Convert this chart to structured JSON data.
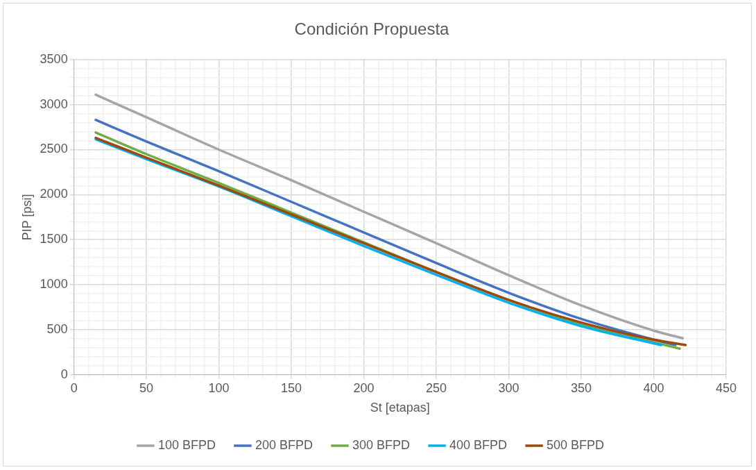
{
  "chart_data": {
    "type": "line",
    "title": "Condición Propuesta",
    "xlabel": "St [etapas]",
    "ylabel": "PIP [psi]",
    "xlim": [
      0,
      450
    ],
    "xticks": [
      0,
      {
        "value": 10,
        "label": null
      },
      {
        "value": 20,
        "label": null
      },
      {
        "value": 30,
        "label": null
      },
      {
        "value": 40,
        "label": null
      },
      50,
      {
        "value": 60,
        "label": null
      },
      {
        "value": 70,
        "label": null
      },
      {
        "value": 80,
        "label": null
      },
      {
        "value": 90,
        "label": null
      },
      100,
      {
        "value": 110,
        "label": null
      },
      {
        "value": 120,
        "label": null
      },
      {
        "value": 130,
        "label": null
      },
      {
        "value": 140,
        "label": null
      },
      150,
      {
        "value": 160,
        "label": null
      },
      {
        "value": 170,
        "label": null
      },
      {
        "value": 180,
        "label": null
      },
      {
        "value": 190,
        "label": null
      },
      200,
      {
        "value": 210,
        "label": null
      },
      {
        "value": 220,
        "label": null
      },
      {
        "value": 230,
        "label": null
      },
      {
        "value": 240,
        "label": null
      },
      250,
      {
        "value": 260,
        "label": null
      },
      {
        "value": 270,
        "label": null
      },
      {
        "value": 280,
        "label": null
      },
      {
        "value": 290,
        "label": null
      },
      300,
      {
        "value": 310,
        "label": null
      },
      {
        "value": 320,
        "label": null
      },
      {
        "value": 330,
        "label": null
      },
      {
        "value": 340,
        "label": null
      },
      350,
      {
        "value": 360,
        "label": null
      },
      {
        "value": 370,
        "label": null
      },
      {
        "value": 380,
        "label": null
      },
      {
        "value": 390,
        "label": null
      },
      400,
      {
        "value": 410,
        "label": null
      },
      {
        "value": 420,
        "label": null
      },
      {
        "value": 430,
        "label": null
      },
      {
        "value": 440,
        "label": null
      },
      450
    ],
    "ylim": [
      0,
      3500
    ],
    "yticks": [
      0,
      {
        "value": 100,
        "label": null
      },
      {
        "value": 200,
        "label": null
      },
      {
        "value": 300,
        "label": null
      },
      {
        "value": 400,
        "label": null
      },
      500,
      {
        "value": 600,
        "label": null
      },
      {
        "value": 700,
        "label": null
      },
      {
        "value": 800,
        "label": null
      },
      {
        "value": 900,
        "label": null
      },
      1000,
      {
        "value": 1100,
        "label": null
      },
      {
        "value": 1200,
        "label": null
      },
      {
        "value": 1300,
        "label": null
      },
      {
        "value": 1400,
        "label": null
      },
      1500,
      {
        "value": 1600,
        "label": null
      },
      {
        "value": 1700,
        "label": null
      },
      {
        "value": 1800,
        "label": null
      },
      {
        "value": 1900,
        "label": null
      },
      2000,
      {
        "value": 2100,
        "label": null
      },
      {
        "value": 2200,
        "label": null
      },
      {
        "value": 2300,
        "label": null
      },
      {
        "value": 2400,
        "label": null
      },
      2500,
      {
        "value": 2600,
        "label": null
      },
      {
        "value": 2700,
        "label": null
      },
      {
        "value": 2800,
        "label": null
      },
      {
        "value": 2900,
        "label": null
      },
      3000,
      {
        "value": 3100,
        "label": null
      },
      {
        "value": 3200,
        "label": null
      },
      {
        "value": 3300,
        "label": null
      },
      {
        "value": 3400,
        "label": null
      },
      3500
    ],
    "grid": true,
    "legend": "bottom",
    "marker": "none",
    "line_style": "solid",
    "series": [
      {
        "name": "100 BFPD",
        "color": "#a5a5a5",
        "x": [
          15,
          50,
          100,
          150,
          200,
          250,
          300,
          350,
          400,
          420
        ],
        "values": [
          3110,
          2860,
          2500,
          2160,
          1810,
          1460,
          1105,
          770,
          490,
          405
        ]
      },
      {
        "name": "200 BFPD",
        "color": "#4472c4",
        "x": [
          15,
          50,
          100,
          150,
          200,
          250,
          300,
          350,
          400,
          415
        ],
        "values": [
          2830,
          2590,
          2260,
          1920,
          1580,
          1240,
          910,
          620,
          390,
          330
        ]
      },
      {
        "name": "300 BFPD",
        "color": "#70ad47",
        "x": [
          15,
          50,
          100,
          150,
          200,
          250,
          300,
          350,
          400,
          418
        ],
        "values": [
          2690,
          2450,
          2130,
          1800,
          1470,
          1140,
          830,
          560,
          360,
          290
        ]
      },
      {
        "name": "400 BFPD",
        "color": "#00b0f0",
        "x": [
          15,
          50,
          100,
          150,
          200,
          250,
          300,
          350,
          405
        ],
        "values": [
          2615,
          2395,
          2090,
          1760,
          1430,
          1110,
          800,
          540,
          330
        ]
      },
      {
        "name": "500 BFPD",
        "color": "#9e480e",
        "x": [
          15,
          50,
          100,
          150,
          200,
          250,
          300,
          350,
          400,
          422
        ],
        "values": [
          2630,
          2410,
          2100,
          1780,
          1460,
          1140,
          830,
          580,
          390,
          330
        ]
      }
    ]
  }
}
